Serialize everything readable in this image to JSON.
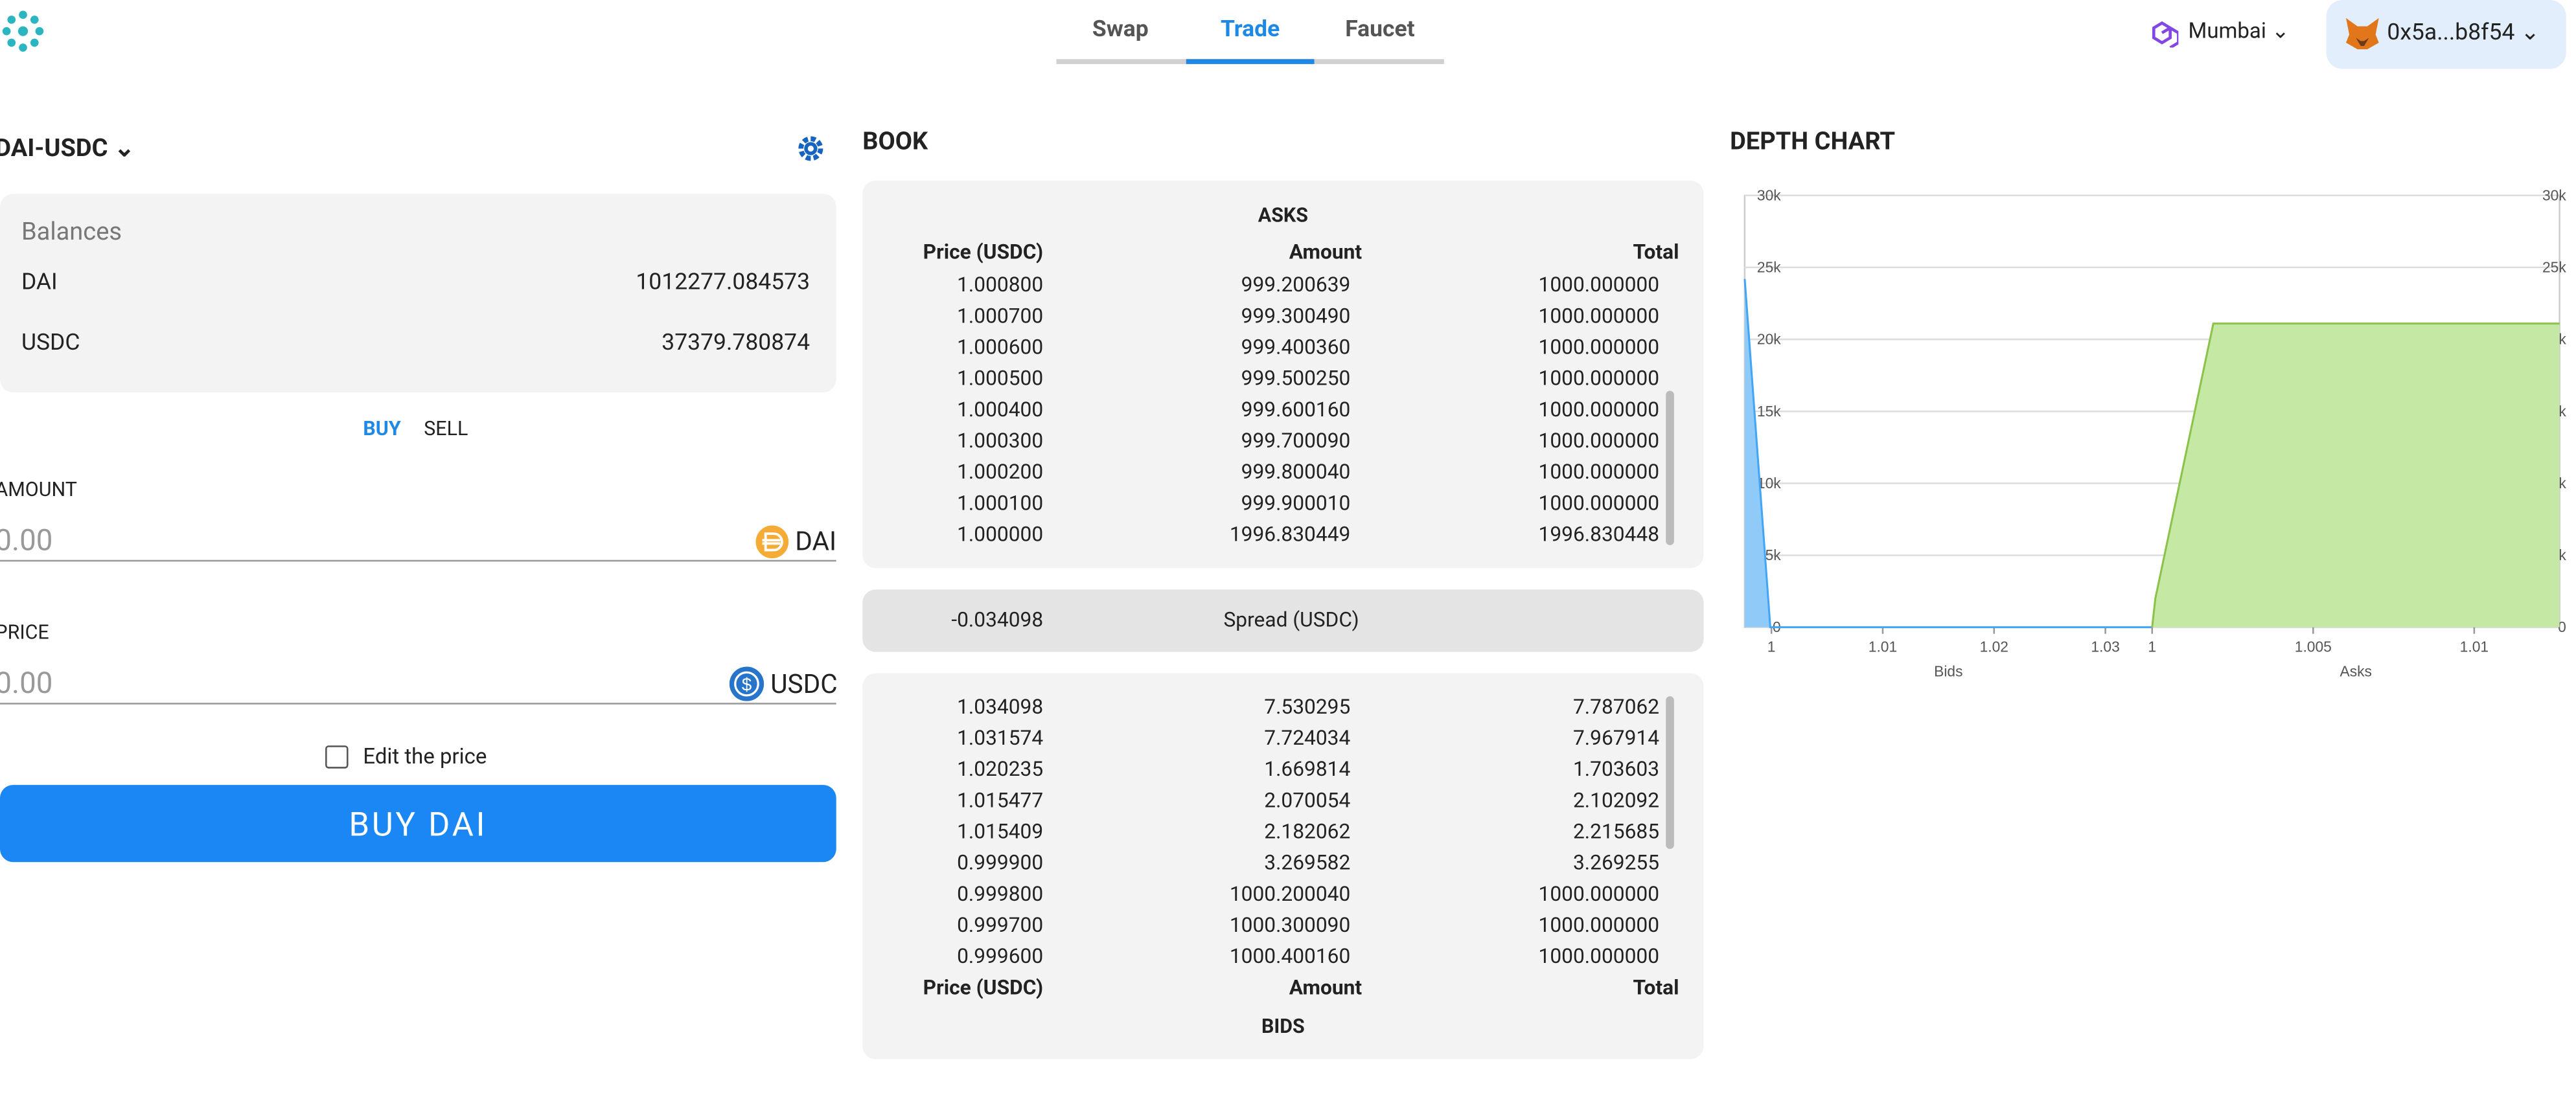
{
  "nav": {
    "tabs": [
      "Swap",
      "Trade",
      "Faucet"
    ],
    "active_tab": 1,
    "network": "Mumbai",
    "account": "0x5a...b8f54"
  },
  "trade": {
    "pair": "DAI-USDC",
    "balances_title": "Balances",
    "balances": [
      [
        "DAI",
        "1012277.084573"
      ],
      [
        "USDC",
        "37379.780874"
      ]
    ],
    "sides": [
      "BUY",
      "SELL"
    ],
    "amount_label": "AMOUNT",
    "amount_placeholder": "0.00",
    "amount_token": "DAI",
    "price_label": "PRICE",
    "price_placeholder": "0.00",
    "price_token": "USDC",
    "edit_price": "Edit the price",
    "submit": "BUY DAI"
  },
  "book": {
    "title": "BOOK",
    "asks_title": "ASKS",
    "headers": [
      "Price (USDC)",
      "Amount",
      "Total"
    ],
    "asks": [
      [
        "1.000800",
        "999.200639",
        "1000.000000"
      ],
      [
        "1.000700",
        "999.300490",
        "1000.000000"
      ],
      [
        "1.000600",
        "999.400360",
        "1000.000000"
      ],
      [
        "1.000500",
        "999.500250",
        "1000.000000"
      ],
      [
        "1.000400",
        "999.600160",
        "1000.000000"
      ],
      [
        "1.000300",
        "999.700090",
        "1000.000000"
      ],
      [
        "1.000200",
        "999.800040",
        "1000.000000"
      ],
      [
        "1.000100",
        "999.900010",
        "1000.000000"
      ],
      [
        "1.000000",
        "1996.830449",
        "1996.830448"
      ]
    ],
    "spread_value": "-0.034098",
    "spread_label": "Spread (USDC)",
    "bids": [
      [
        "1.034098",
        "7.530295",
        "7.787062"
      ],
      [
        "1.031574",
        "7.724034",
        "7.967914"
      ],
      [
        "1.020235",
        "1.669814",
        "1.703603"
      ],
      [
        "1.015477",
        "2.070054",
        "2.102092"
      ],
      [
        "1.015409",
        "2.182062",
        "2.215685"
      ],
      [
        "0.999900",
        "3.269582",
        "3.269255"
      ],
      [
        "0.999800",
        "1000.200040",
        "1000.000000"
      ],
      [
        "0.999700",
        "1000.300090",
        "1000.000000"
      ],
      [
        "0.999600",
        "1000.400160",
        "1000.000000"
      ]
    ],
    "bids_title": "BIDS"
  },
  "chart_data": {
    "type": "area",
    "title": "DEPTH CHART",
    "ylim": [
      0,
      30000
    ],
    "yticks": [
      0,
      {
        "value": 5000,
        "label": "5k"
      },
      {
        "value": 10000,
        "label": "10k"
      },
      {
        "value": 15000,
        "label": "15k"
      },
      {
        "value": 20000,
        "label": "20k"
      },
      {
        "value": 25000,
        "label": "25k"
      },
      {
        "value": 30000,
        "label": "30k"
      }
    ],
    "grid": true,
    "panels": [
      {
        "xlabel": "Bids",
        "xlim": [
          0.9976,
          1.0342
        ],
        "xticks": [
          1,
          1.01,
          1.02,
          1.03
        ],
        "x": [
          0.9976,
          0.9999,
          1.0342
        ],
        "values": [
          24200,
          0,
          0
        ],
        "color": "#90caf9",
        "line_color": "#42a5f5"
      },
      {
        "xlabel": "Asks",
        "xlim": [
          1.0,
          1.01265
        ],
        "xticks": [
          1,
          1.005,
          1.01
        ],
        "x": [
          1.0,
          1.0001,
          1.0019,
          1.01265
        ],
        "values": [
          0,
          2000,
          21100,
          21100
        ],
        "color": "#c5e8a5",
        "line_color": "#8bc34a"
      }
    ]
  }
}
